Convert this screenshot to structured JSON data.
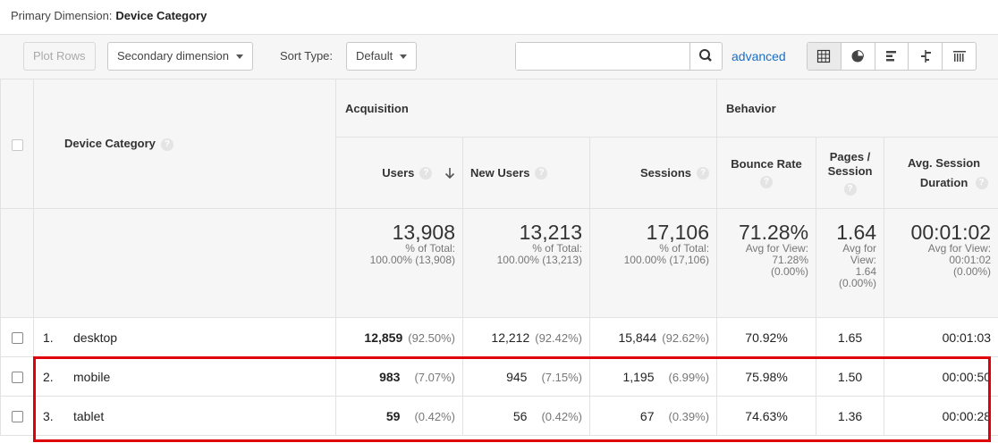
{
  "primary_dimension": {
    "label": "Primary Dimension:",
    "value": "Device Category"
  },
  "toolbar": {
    "plot_rows": "Plot Rows",
    "secondary_dimension": "Secondary dimension",
    "sort_type_label": "Sort Type:",
    "sort_type_value": "Default",
    "search_value": "",
    "advanced": "advanced",
    "views": [
      "table-view-icon",
      "pie-view-icon",
      "performance-view-icon",
      "comparison-view-icon",
      "term-cloud-view-icon"
    ]
  },
  "table": {
    "dimension_header": "Device Category",
    "groups": {
      "acquisition": "Acquisition",
      "behavior": "Behavior"
    },
    "columns": {
      "users": "Users",
      "new_users": "New Users",
      "sessions": "Sessions",
      "bounce_rate": "Bounce Rate",
      "pages_session": "Pages / Session",
      "avg_session_duration": "Avg. Session Duration"
    },
    "totals": {
      "users": {
        "value": "13,908",
        "l1": "% of Total:",
        "l2": "100.00% (13,908)"
      },
      "new_users": {
        "value": "13,213",
        "l1": "% of Total:",
        "l2": "100.00% (13,213)"
      },
      "sessions": {
        "value": "17,106",
        "l1": "% of Total:",
        "l2": "100.00% (17,106)"
      },
      "bounce_rate": {
        "value": "71.28%",
        "l1": "Avg for View:",
        "l2": "71.28%",
        "l3": "(0.00%)"
      },
      "pages_session": {
        "value": "1.64",
        "l1": "Avg for",
        "l2": "View:",
        "l3": "1.64",
        "l4": "(0.00%)"
      },
      "avg_session_duration": {
        "value": "00:01:02",
        "l1": "Avg for View:",
        "l2": "00:01:02",
        "l3": "(0.00%)"
      }
    },
    "rows": [
      {
        "rank": "1.",
        "device": "desktop",
        "users": "12,859",
        "users_pct": "(92.50%)",
        "new_users": "12,212",
        "new_users_pct": "(92.42%)",
        "sessions": "15,844",
        "sessions_pct": "(92.62%)",
        "bounce_rate": "70.92%",
        "pages_session": "1.65",
        "duration": "00:01:03"
      },
      {
        "rank": "2.",
        "device": "mobile",
        "users": "983",
        "users_pct": "(7.07%)",
        "new_users": "945",
        "new_users_pct": "(7.15%)",
        "sessions": "1,195",
        "sessions_pct": "(6.99%)",
        "bounce_rate": "75.98%",
        "pages_session": "1.50",
        "duration": "00:00:50"
      },
      {
        "rank": "3.",
        "device": "tablet",
        "users": "59",
        "users_pct": "(0.42%)",
        "new_users": "56",
        "new_users_pct": "(0.42%)",
        "sessions": "67",
        "sessions_pct": "(0.39%)",
        "bounce_rate": "74.63%",
        "pages_session": "1.36",
        "duration": "00:00:28"
      }
    ]
  },
  "colors": {
    "highlight": "#e0000a",
    "link": "#1a6ec4",
    "header_bg": "#f6f6f6"
  }
}
